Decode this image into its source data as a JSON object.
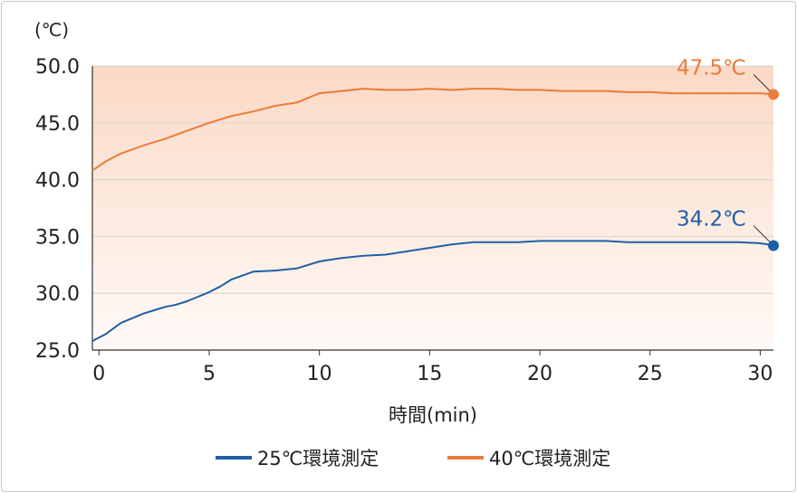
{
  "chart_data": {
    "type": "line",
    "ylabel": "(℃)",
    "xlabel": "時間(min)",
    "ylim": [
      25.0,
      50.0
    ],
    "xlim": [
      -0.3,
      30.6
    ],
    "y_ticks": [
      "50.0",
      "45.0",
      "40.0",
      "35.0",
      "30.0",
      "25.0"
    ],
    "y_tick_values": [
      50,
      45,
      40,
      35,
      30,
      25
    ],
    "x_ticks": [
      "0",
      "5",
      "10",
      "15",
      "20",
      "25",
      "30"
    ],
    "x_tick_values": [
      0,
      5,
      10,
      15,
      20,
      25,
      30
    ],
    "grid": true,
    "legend_position": "bottom",
    "series": [
      {
        "name": "25℃環境測定",
        "color": "#1f5fa6",
        "end_label": "34.2℃",
        "x": [
          -0.3,
          0.3,
          1,
          2,
          2.5,
          3,
          3.5,
          4,
          4.5,
          5,
          5.5,
          6,
          7,
          8,
          9,
          10,
          11,
          12,
          13,
          14,
          15,
          16,
          17,
          18,
          19,
          20,
          21,
          22,
          23,
          24,
          25,
          26,
          27,
          28,
          29,
          30,
          30.6
        ],
        "y": [
          25.8,
          26.4,
          27.4,
          28.2,
          28.5,
          28.8,
          29.0,
          29.3,
          29.7,
          30.1,
          30.6,
          31.2,
          31.9,
          32.0,
          32.2,
          32.8,
          33.1,
          33.3,
          33.4,
          33.7,
          34.0,
          34.3,
          34.5,
          34.5,
          34.5,
          34.6,
          34.6,
          34.6,
          34.6,
          34.5,
          34.5,
          34.5,
          34.5,
          34.5,
          34.5,
          34.4,
          34.2
        ]
      },
      {
        "name": "40℃環境測定",
        "color": "#ea7c3b",
        "end_label": "47.5℃",
        "x": [
          -0.3,
          0.3,
          1,
          2,
          3,
          4,
          5,
          6,
          7,
          8,
          9,
          10,
          11,
          12,
          13,
          14,
          15,
          16,
          17,
          18,
          19,
          20,
          21,
          22,
          23,
          24,
          25,
          26,
          27,
          28,
          29,
          30,
          30.6
        ],
        "y": [
          40.8,
          41.6,
          42.3,
          43.0,
          43.6,
          44.3,
          45.0,
          45.6,
          46.0,
          46.5,
          46.8,
          47.6,
          47.8,
          48.0,
          47.9,
          47.9,
          48.0,
          47.9,
          48.0,
          48.0,
          47.9,
          47.9,
          47.8,
          47.8,
          47.8,
          47.7,
          47.7,
          47.6,
          47.6,
          47.6,
          47.6,
          47.6,
          47.5
        ]
      }
    ]
  }
}
